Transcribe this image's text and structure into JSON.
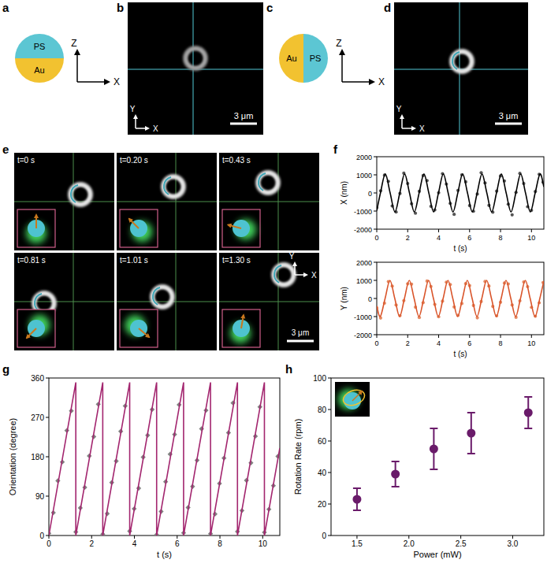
{
  "panel_labels": [
    "a",
    "b",
    "c",
    "d",
    "e",
    "f",
    "g",
    "h"
  ],
  "schematic_a": {
    "top_material": "PS",
    "bottom_material": "Au",
    "axis_vertical": "Z",
    "axis_horizontal": "X"
  },
  "image_b": {
    "axis_vertical": "Y",
    "axis_horizontal": "X",
    "scale_bar": "3 μm"
  },
  "schematic_c": {
    "left_material": "Au",
    "right_material": "PS",
    "axis_vertical": "Z",
    "axis_horizontal": "X"
  },
  "image_d": {
    "axis_vertical": "Y",
    "axis_horizontal": "X",
    "scale_bar": "3 μm"
  },
  "frames_e": {
    "times": [
      "t=0 s",
      "t=0.20 s",
      "t=0.43 s",
      "t=0.81 s",
      "t=1.01 s",
      "t=1.30 s"
    ],
    "axis_vertical": "Y",
    "axis_horizontal": "X",
    "scale_bar": "3 μm"
  },
  "chart_data": [
    {
      "type": "scatter",
      "x_label": "t (s)",
      "y_label": "X (nm)",
      "xlim": [
        0,
        10.8
      ],
      "ylim": [
        -2000,
        2000
      ],
      "xticks": [
        0,
        2,
        4,
        6,
        8,
        10
      ],
      "yticks": [
        -2000,
        -1000,
        0,
        1000,
        2000
      ],
      "series": [
        {
          "type": "scatter",
          "marker": "circle",
          "color": "#555555",
          "x": [
            0,
            0.25,
            0.5,
            0.75,
            1,
            1.25,
            1.5,
            1.75,
            2,
            2.25,
            2.5,
            2.75,
            3,
            3.25,
            3.5,
            3.75,
            4,
            4.25,
            4.5,
            4.75,
            5,
            5.25,
            5.5,
            5.75,
            6,
            6.25,
            6.5,
            6.75,
            7,
            7.25,
            7.5,
            7.75,
            8,
            8.25,
            8.5,
            8.75,
            9,
            9.25,
            9.5,
            9.75,
            10,
            10.25,
            10.5,
            10.75
          ],
          "values": [
            -820,
            120,
            980,
            640,
            -720,
            -1050,
            -30,
            1090,
            520,
            -600,
            -1120,
            90,
            960,
            680,
            -740,
            -940,
            10,
            1060,
            490,
            -580,
            -1180,
            140,
            1000,
            610,
            -700,
            -1010,
            -60,
            1120,
            550,
            -690,
            -1060,
            100,
            940,
            660,
            -620,
            -1210,
            30,
            1080,
            520,
            -760,
            -960,
            80,
            1030,
            590
          ]
        },
        {
          "type": "line",
          "line_style": "smooth",
          "color": "#000000",
          "x": [
            0,
            0.24,
            0.5525,
            0.865,
            1.1775,
            1.49,
            1.8025,
            2.115,
            2.4275,
            2.74,
            3.0525,
            3.365,
            3.6775,
            3.99,
            4.3025,
            4.615,
            4.9275,
            5.24,
            5.5525,
            5.865,
            6.1775,
            6.49,
            6.8025,
            7.115,
            7.4275,
            7.74,
            8.0525,
            8.365,
            8.6775,
            8.99,
            9.3025,
            9.615,
            9.9275,
            10.24,
            10.5525,
            10.8
          ],
          "values": [
            -980,
            0,
            1050,
            0,
            -1050,
            0,
            1050,
            0,
            -1050,
            0,
            1050,
            0,
            -1050,
            0,
            1050,
            0,
            -1050,
            0,
            1050,
            0,
            -1050,
            0,
            1050,
            0,
            -1050,
            0,
            1050,
            0,
            -1050,
            0,
            1050,
            0,
            -1050,
            0,
            1050,
            337
          ]
        }
      ]
    },
    {
      "type": "scatter",
      "x_label": "t (s)",
      "y_label": "Y (nm)",
      "xlim": [
        0,
        10.8
      ],
      "ylim": [
        -2000,
        2000
      ],
      "xticks": [
        0,
        2,
        4,
        6,
        8,
        10
      ],
      "yticks": [
        -2000,
        -1000,
        0,
        1000,
        2000
      ],
      "series": [
        {
          "type": "scatter",
          "marker": "circle",
          "color": "#e58a62",
          "x": [
            0,
            0.25,
            0.5,
            0.75,
            1,
            1.25,
            1.5,
            1.75,
            2,
            2.25,
            2.5,
            2.75,
            3,
            3.25,
            3.5,
            3.75,
            4,
            4.25,
            4.5,
            4.75,
            5,
            5.25,
            5.5,
            5.75,
            6,
            6.25,
            6.5,
            6.75,
            7,
            7.25,
            7.5,
            7.75,
            8,
            8.25,
            8.5,
            8.75,
            9,
            9.25,
            9.5,
            9.75,
            10,
            10.25,
            10.5,
            10.75
          ],
          "values": [
            -520,
            -1080,
            -260,
            930,
            680,
            -360,
            -950,
            -120,
            810,
            790,
            -480,
            -1050,
            -230,
            960,
            660,
            -330,
            -1010,
            -150,
            900,
            770,
            -470,
            -930,
            -280,
            820,
            710,
            -390,
            -1070,
            -170,
            940,
            690,
            -440,
            -960,
            -210,
            850,
            800,
            -360,
            -1040,
            -130,
            910,
            650,
            -490,
            -980,
            -240,
            880
          ]
        },
        {
          "type": "line",
          "line_style": "smooth",
          "color": "#d9542a",
          "x": [
            0,
            0.2275,
            0.54,
            0.8525,
            1.165,
            1.4775,
            1.79,
            2.1025,
            2.415,
            2.7275,
            3.04,
            3.3525,
            3.665,
            3.9775,
            4.29,
            4.6025,
            4.915,
            5.2275,
            5.54,
            5.8525,
            6.165,
            6.4775,
            6.79,
            7.1025,
            7.415,
            7.7275,
            8.04,
            8.3525,
            8.665,
            8.9775,
            9.29,
            9.6025,
            9.915,
            10.2275,
            10.54,
            10.8
          ],
          "values": [
            -415,
            -1000,
            0,
            1000,
            0,
            -1000,
            0,
            1000,
            0,
            -1000,
            0,
            1000,
            0,
            -1000,
            0,
            1000,
            0,
            -1000,
            0,
            1000,
            0,
            -1000,
            0,
            1000,
            0,
            -1000,
            0,
            1000,
            0,
            -1000,
            0,
            1000,
            0,
            -1000,
            0,
            965
          ]
        }
      ]
    },
    {
      "type": "scatter",
      "x_label": "t (s)",
      "y_label": "Orientation (degree)",
      "xlim": [
        0,
        10.8
      ],
      "ylim": [
        0,
        360
      ],
      "xticks": [
        0,
        2,
        4,
        6,
        8,
        10
      ],
      "yticks": [
        0,
        90,
        180,
        270,
        360
      ],
      "series": [
        {
          "type": "scatter",
          "marker": "diamond",
          "color": "#808080",
          "x": [
            0,
            0.21,
            0.42,
            0.63,
            0.84,
            1.05,
            1.26,
            1.47,
            1.68,
            1.89,
            2.1,
            2.31,
            2.52,
            2.73,
            2.94,
            3.15,
            3.36,
            3.57,
            3.78,
            3.99,
            4.2,
            4.41,
            4.62,
            4.83,
            5.04,
            5.25,
            5.46,
            5.67,
            5.88,
            6.09,
            6.3,
            6.51,
            6.72,
            6.93,
            7.14,
            7.35,
            7.56,
            7.77,
            7.98,
            8.19,
            8.4,
            8.61,
            8.82,
            9.03,
            9.24,
            9.45,
            9.66,
            9.87,
            10.08,
            10.29,
            10.5,
            10.71
          ],
          "values": [
            5,
            52,
            125,
            168,
            240,
            285,
            8,
            63,
            110,
            182,
            226,
            300,
            3,
            50,
            121,
            170,
            238,
            296,
            10,
            61,
            108,
            179,
            229,
            288,
            2,
            55,
            123,
            186,
            231,
            299,
            6,
            64,
            112,
            172,
            244,
            286,
            4,
            49,
            119,
            177,
            235,
            303,
            9,
            57,
            126,
            166,
            227,
            294,
            7,
            60,
            114,
            181
          ]
        },
        {
          "type": "line",
          "line_style": "solid",
          "color": "#a3266f",
          "x": [
            0,
            1.26,
            1.26,
            2.52,
            2.52,
            3.78,
            3.78,
            5.04,
            5.04,
            6.3,
            6.3,
            7.56,
            7.56,
            8.82,
            8.82,
            10.08,
            10.08,
            10.8
          ],
          "values": [
            0,
            350,
            0,
            350,
            0,
            350,
            0,
            350,
            0,
            350,
            0,
            350,
            0,
            350,
            0,
            350,
            0,
            200
          ]
        }
      ]
    },
    {
      "type": "scatter",
      "x_label": "Power (mW)",
      "y_label": "Rotation Rate (rpm)",
      "xlim": [
        1.25,
        3.3
      ],
      "ylim": [
        0,
        100
      ],
      "xticks": [
        1.5,
        {
          "value": 2,
          "label": "2.0"
        },
        2.5,
        {
          "value": 3,
          "label": "3.0"
        }
      ],
      "yticks": [
        0,
        20,
        40,
        60,
        80,
        100
      ],
      "marker": "circle",
      "color": "#6a1b6a",
      "x": [
        1.5,
        1.87,
        2.24,
        2.6,
        3.15
      ],
      "values": [
        23,
        39,
        55,
        65,
        78
      ],
      "errors": [
        7,
        8,
        13,
        13,
        10
      ]
    }
  ]
}
